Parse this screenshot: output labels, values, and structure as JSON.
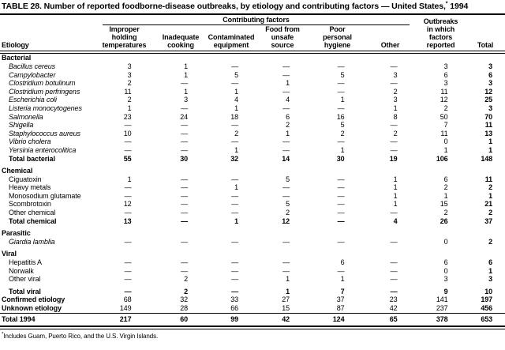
{
  "title": {
    "text_before_sup": "TABLE 28. Number of reported foodborne-disease outbreaks, by etiology and contributing factors — United States,",
    "sup": "*",
    "text_after_sup": " 1994"
  },
  "header": {
    "etiology": "Etiology",
    "contributing_factors": "Contributing factors",
    "outbreaks_top": "Outbreaks",
    "columns": {
      "improper": "Improper\nholding\ntemperatures",
      "inadequate": "Inadequate\ncooking",
      "contaminated": "Contaminated\nequipment",
      "unsafe": "Food from\nunsafe\nsource",
      "hygiene": "Poor\npersonal\nhygiene",
      "other": "Other",
      "outbreaks_rest": "in which\nfactors\nreported",
      "total": "Total"
    }
  },
  "rows": [
    {
      "type": "section",
      "label": "Bacterial"
    },
    {
      "type": "item",
      "italic": true,
      "label": "Bacillus cereus",
      "values": [
        "3",
        "1",
        "—",
        "—",
        "—",
        "—",
        "3",
        "3"
      ]
    },
    {
      "type": "item",
      "italic": true,
      "label": "Campylobacter",
      "values": [
        "3",
        "1",
        "5",
        "—",
        "5",
        "3",
        "6",
        "6"
      ]
    },
    {
      "type": "item",
      "italic": true,
      "label": "Clostridium botulinum",
      "values": [
        "2",
        "—",
        "—",
        "1",
        "—",
        "—",
        "3",
        "3"
      ]
    },
    {
      "type": "item",
      "italic": true,
      "label": "Clostridium perfringens",
      "values": [
        "11",
        "1",
        "1",
        "—",
        "—",
        "2",
        "11",
        "12"
      ]
    },
    {
      "type": "item",
      "italic": true,
      "label": "Escherichia coli",
      "values": [
        "2",
        "3",
        "4",
        "4",
        "1",
        "3",
        "12",
        "25"
      ]
    },
    {
      "type": "item",
      "italic": true,
      "label": "Listeria monocytogenes",
      "values": [
        "1",
        "—",
        "1",
        "—",
        "—",
        "1",
        "2",
        "3"
      ]
    },
    {
      "type": "item",
      "italic": true,
      "label": "Salmonella",
      "values": [
        "23",
        "24",
        "18",
        "6",
        "16",
        "8",
        "50",
        "70"
      ]
    },
    {
      "type": "item",
      "italic": true,
      "label": "Shigella",
      "values": [
        "—",
        "—",
        "—",
        "2",
        "5",
        "—",
        "7",
        "11"
      ]
    },
    {
      "type": "item",
      "italic": true,
      "label": "Staphylococcus aureus",
      "values": [
        "10",
        "—",
        "2",
        "1",
        "2",
        "2",
        "11",
        "13"
      ]
    },
    {
      "type": "item",
      "italic": true,
      "label": "Vibrio cholera",
      "values": [
        "—",
        "—",
        "—",
        "—",
        "—",
        "—",
        "0",
        "1"
      ]
    },
    {
      "type": "item",
      "italic": true,
      "label": "Yersinia enterocolitica",
      "values": [
        "—",
        "—",
        "1",
        "—",
        "1",
        "—",
        "1",
        "1"
      ]
    },
    {
      "type": "total",
      "label": "Total bacterial",
      "values": [
        "55",
        "30",
        "32",
        "14",
        "30",
        "19",
        "106",
        "148"
      ]
    },
    {
      "type": "section",
      "gap": true,
      "label": "Chemical"
    },
    {
      "type": "item",
      "label": "Ciguatoxin",
      "values": [
        "1",
        "—",
        "—",
        "5",
        "—",
        "1",
        "6",
        "11"
      ]
    },
    {
      "type": "item",
      "label": "Heavy metals",
      "values": [
        "—",
        "—",
        "1",
        "—",
        "—",
        "1",
        "2",
        "2"
      ]
    },
    {
      "type": "item",
      "label": "Monosodium glutamate",
      "values": [
        "—",
        "—",
        "—",
        "—",
        "—",
        "1",
        "1",
        "1"
      ]
    },
    {
      "type": "item",
      "label": "Scombrotoxin",
      "values": [
        "12",
        "—",
        "—",
        "5",
        "—",
        "1",
        "15",
        "21"
      ]
    },
    {
      "type": "item",
      "label": "Other chemical",
      "values": [
        "—",
        "—",
        "—",
        "2",
        "—",
        "—",
        "2",
        "2"
      ]
    },
    {
      "type": "total",
      "label": "Total chemical",
      "values": [
        "13",
        "—",
        "1",
        "12",
        "—",
        "4",
        "26",
        "37"
      ]
    },
    {
      "type": "section",
      "gap": true,
      "label": "Parasitic"
    },
    {
      "type": "item",
      "italic": true,
      "label": "Giardia lamblia",
      "values": [
        "—",
        "—",
        "—",
        "—",
        "—",
        "—",
        "0",
        "2"
      ]
    },
    {
      "type": "section",
      "gap": true,
      "label": "Viral"
    },
    {
      "type": "item",
      "label": "Hepatitis A",
      "values": [
        "—",
        "—",
        "—",
        "—",
        "6",
        "—",
        "6",
        "6"
      ]
    },
    {
      "type": "item",
      "label": "Norwalk",
      "values": [
        "—",
        "—",
        "—",
        "—",
        "—",
        "—",
        "0",
        "1"
      ]
    },
    {
      "type": "item",
      "label": "Other viral",
      "values": [
        "—",
        "2",
        "—",
        "1",
        "1",
        "—",
        "3",
        "3"
      ]
    },
    {
      "type": "total",
      "gap": true,
      "label": "Total viral",
      "values": [
        "—",
        "2",
        "—",
        "1",
        "7",
        "—",
        "9",
        "10"
      ]
    },
    {
      "type": "summary",
      "label": "Confirmed etiology",
      "values": [
        "68",
        "32",
        "33",
        "27",
        "37",
        "23",
        "141",
        "197"
      ]
    },
    {
      "type": "summary",
      "label": "Unknown etiology",
      "values": [
        "149",
        "28",
        "66",
        "15",
        "87",
        "42",
        "237",
        "456"
      ]
    },
    {
      "type": "grand",
      "label": "Total 1994",
      "values": [
        "217",
        "60",
        "99",
        "42",
        "124",
        "65",
        "378",
        "653"
      ]
    }
  ],
  "footnote": {
    "sup": "*",
    "text": "Includes Guam, Puerto Rico, and the U.S. Virgin Islands."
  }
}
